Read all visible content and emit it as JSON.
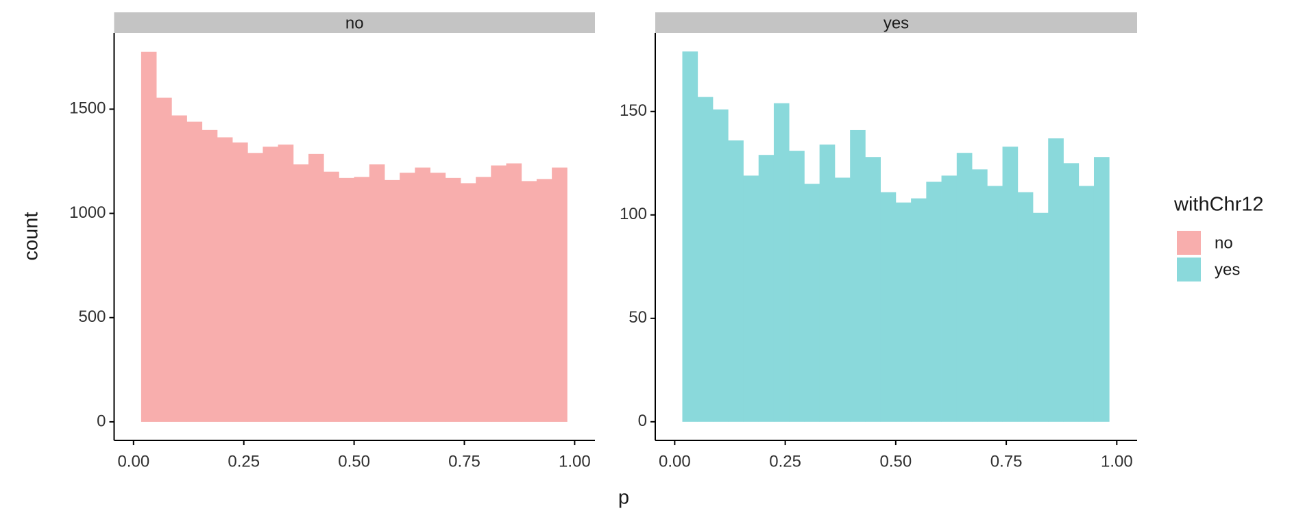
{
  "chart_data": [
    {
      "type": "histogram",
      "title": "no",
      "bins": [
        0.0172,
        0.0517,
        0.0862,
        0.1207,
        0.1552,
        0.1897,
        0.2241,
        0.2586,
        0.2931,
        0.3276,
        0.3621,
        0.3966,
        0.431,
        0.4655,
        0.5,
        0.5345,
        0.569,
        0.6034,
        0.6379,
        0.6724,
        0.7069,
        0.7414,
        0.7759,
        0.8103,
        0.8448,
        0.8793,
        0.9138,
        0.9483,
        0.9828
      ],
      "series": [
        {
          "name": "no",
          "color": "#F8AEAD",
          "values": [
            1775,
            1555,
            1470,
            1440,
            1400,
            1365,
            1340,
            1290,
            1320,
            1330,
            1235,
            1285,
            1200,
            1170,
            1175,
            1235,
            1160,
            1195,
            1220,
            1195,
            1170,
            1145,
            1175,
            1230,
            1240,
            1155,
            1165,
            1220
          ]
        }
      ],
      "xlim": [
        -0.044,
        1.046
      ],
      "ylim": [
        -89,
        1866
      ],
      "xticks": [
        {
          "value": 0,
          "label": "0.00"
        },
        {
          "value": 0.25,
          "label": "0.25"
        },
        {
          "value": 0.5,
          "label": "0.50"
        },
        {
          "value": 0.75,
          "label": "0.75"
        },
        {
          "value": 1,
          "label": "1.00"
        }
      ],
      "yticks": [
        0,
        500,
        1000,
        1500
      ]
    },
    {
      "type": "histogram",
      "title": "yes",
      "bins": [
        0.0172,
        0.0517,
        0.0862,
        0.1207,
        0.1552,
        0.1897,
        0.2241,
        0.2586,
        0.2931,
        0.3276,
        0.3621,
        0.3966,
        0.431,
        0.4655,
        0.5,
        0.5345,
        0.569,
        0.6034,
        0.6379,
        0.6724,
        0.7069,
        0.7414,
        0.7759,
        0.8103,
        0.8448,
        0.8793,
        0.9138,
        0.9483,
        0.9828
      ],
      "series": [
        {
          "name": "yes",
          "color": "#8AD9DB",
          "values": [
            179,
            157,
            151,
            136,
            119,
            129,
            154,
            131,
            115,
            134,
            118,
            141,
            128,
            111,
            106,
            108,
            116,
            119,
            130,
            122,
            114,
            133,
            111,
            101,
            137,
            125,
            114,
            128
          ]
        }
      ],
      "xlim": [
        -0.044,
        1.046
      ],
      "ylim": [
        -9,
        188
      ],
      "xticks": [
        {
          "value": 0,
          "label": "0.00"
        },
        {
          "value": 0.25,
          "label": "0.25"
        },
        {
          "value": 0.5,
          "label": "0.50"
        },
        {
          "value": 0.75,
          "label": "0.75"
        },
        {
          "value": 1,
          "label": "1.00"
        }
      ],
      "yticks": [
        0,
        50,
        100,
        150
      ]
    }
  ],
  "x_label": "p",
  "y_label": "count",
  "legend_title": "withChr12"
}
